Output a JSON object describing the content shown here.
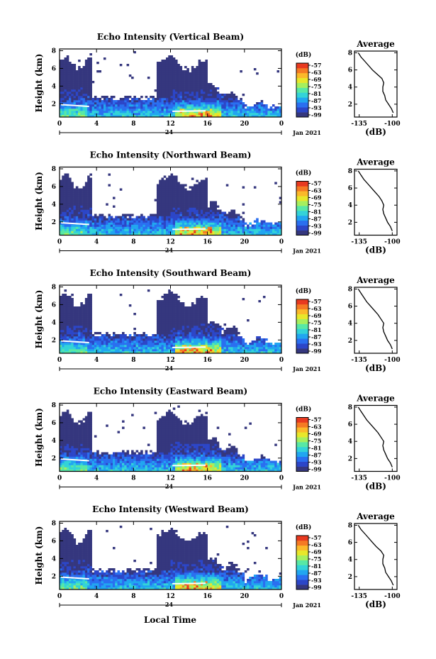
{
  "figure": {
    "xlabel": "Local Time",
    "date_label": "Jan 2021",
    "day_label": "24",
    "cbar_unit": "(dB)",
    "avg_title": "Average",
    "avg_xlabel": "(dB)",
    "ylabel": "Height (km)"
  },
  "colormap": [
    "#35377e",
    "#2c46c8",
    "#2a6ff0",
    "#21a6f0",
    "#33d3d8",
    "#58e8a5",
    "#a6ef5e",
    "#e8e72a",
    "#fbb92a",
    "#f57a24",
    "#e83a20"
  ],
  "chart_data": [
    {
      "type": "heatmap",
      "title": "Echo Intensity (Vertical Beam)",
      "xlabel": "Local Time",
      "ylabel": "Height (km)",
      "x_ticks": [
        "0",
        "4",
        "8",
        "12",
        "16",
        "20",
        "0"
      ],
      "x_range_hours": [
        0,
        24
      ],
      "y_ticks": [
        "2",
        "4",
        "6",
        "8"
      ],
      "ylim": [
        0.5,
        8.2
      ],
      "colorbar": {
        "unit": "(dB)",
        "ticks": [
          "-57",
          "-63",
          "-69",
          "-75",
          "-81",
          "-87",
          "-93",
          "-99"
        ]
      },
      "profile": {
        "title": "Average",
        "xlabel": "(dB)",
        "x_ticks": [
          "-135",
          "-100"
        ],
        "xlim": [
          -140,
          -95
        ],
        "y_ticks": [
          "2",
          "4",
          "6",
          "8"
        ],
        "height_km": [
          1.0,
          1.5,
          2.0,
          2.5,
          3.0,
          3.5,
          4.0,
          4.5,
          5.0,
          5.5,
          6.0,
          6.5,
          7.0,
          7.5,
          8.0
        ],
        "db": [
          -99,
          -101,
          -104,
          -107,
          -108,
          -110,
          -110,
          -109,
          -111,
          -116,
          -121,
          -125,
          -129,
          -133,
          -136
        ]
      }
    },
    {
      "type": "heatmap",
      "title": "Echo Intensity (Northward Beam)",
      "xlabel": "Local Time",
      "ylabel": "Height (km)",
      "x_ticks": [
        "0",
        "4",
        "8",
        "12",
        "16",
        "20",
        "0"
      ],
      "x_range_hours": [
        0,
        24
      ],
      "y_ticks": [
        "2",
        "4",
        "6",
        "8"
      ],
      "ylim": [
        0.5,
        8.2
      ],
      "colorbar": {
        "unit": "(dB)",
        "ticks": [
          "-57",
          "-63",
          "-69",
          "-75",
          "-81",
          "-87",
          "-93",
          "-99"
        ]
      },
      "profile": {
        "title": "Average",
        "xlabel": "(dB)",
        "x_ticks": [
          "-135",
          "-100"
        ],
        "xlim": [
          -140,
          -95
        ],
        "y_ticks": [
          "2",
          "4",
          "6",
          "8"
        ],
        "height_km": [
          1.0,
          1.5,
          2.0,
          2.5,
          3.0,
          3.5,
          4.0,
          4.5,
          5.0,
          5.5,
          6.0,
          6.5,
          7.0,
          7.5,
          8.0
        ],
        "db": [
          -100,
          -102,
          -105,
          -107,
          -109,
          -110,
          -109,
          -111,
          -114,
          -118,
          -122,
          -126,
          -130,
          -133,
          -136
        ]
      }
    },
    {
      "type": "heatmap",
      "title": "Echo Intensity (Southward Beam)",
      "xlabel": "Local Time",
      "ylabel": "Height (km)",
      "x_ticks": [
        "0",
        "4",
        "8",
        "12",
        "16",
        "20",
        "0"
      ],
      "x_range_hours": [
        0,
        24
      ],
      "y_ticks": [
        "2",
        "4",
        "6",
        "8"
      ],
      "ylim": [
        0.5,
        8.2
      ],
      "colorbar": {
        "unit": "(dB)",
        "ticks": [
          "-57",
          "-63",
          "-69",
          "-75",
          "-81",
          "-87",
          "-93",
          "-99"
        ]
      },
      "profile": {
        "title": "Average",
        "xlabel": "(dB)",
        "x_ticks": [
          "-135",
          "-100"
        ],
        "xlim": [
          -140,
          -95
        ],
        "y_ticks": [
          "2",
          "4",
          "6",
          "8"
        ],
        "height_km": [
          1.0,
          1.5,
          2.0,
          2.5,
          3.0,
          3.5,
          4.0,
          4.5,
          5.0,
          5.5,
          6.0,
          6.5,
          7.0,
          7.5,
          8.0
        ],
        "db": [
          -100,
          -102,
          -105,
          -107,
          -109,
          -110,
          -109,
          -112,
          -115,
          -119,
          -123,
          -127,
          -130,
          -133,
          -136
        ]
      }
    },
    {
      "type": "heatmap",
      "title": "Echo Intensity (Eastward Beam)",
      "xlabel": "Local Time",
      "ylabel": "Height (km)",
      "x_ticks": [
        "0",
        "4",
        "8",
        "12",
        "16",
        "20",
        "0"
      ],
      "x_range_hours": [
        0,
        24
      ],
      "y_ticks": [
        "2",
        "4",
        "6",
        "8"
      ],
      "ylim": [
        0.5,
        8.2
      ],
      "colorbar": {
        "unit": "(dB)",
        "ticks": [
          "-57",
          "-63",
          "-69",
          "-75",
          "-81",
          "-87",
          "-93",
          "-99"
        ]
      },
      "profile": {
        "title": "Average",
        "xlabel": "(dB)",
        "x_ticks": [
          "-135",
          "-100"
        ],
        "xlim": [
          -140,
          -95
        ],
        "y_ticks": [
          "2",
          "4",
          "6",
          "8"
        ],
        "height_km": [
          1.0,
          1.5,
          2.0,
          2.5,
          3.0,
          3.5,
          4.0,
          4.5,
          5.0,
          5.5,
          6.0,
          6.5,
          7.0,
          7.5,
          8.0
        ],
        "db": [
          -100,
          -102,
          -105,
          -107,
          -109,
          -110,
          -109,
          -112,
          -115,
          -119,
          -123,
          -127,
          -130,
          -133,
          -136
        ]
      }
    },
    {
      "type": "heatmap",
      "title": "Echo Intensity (Westward Beam)",
      "xlabel": "Local Time",
      "ylabel": "Height (km)",
      "x_ticks": [
        "0",
        "4",
        "8",
        "12",
        "16",
        "20",
        "0"
      ],
      "x_range_hours": [
        0,
        24
      ],
      "y_ticks": [
        "2",
        "4",
        "6",
        "8"
      ],
      "ylim": [
        0.5,
        8.2
      ],
      "colorbar": {
        "unit": "(dB)",
        "ticks": [
          "-57",
          "-63",
          "-69",
          "-75",
          "-81",
          "-87",
          "-93",
          "-99"
        ]
      },
      "profile": {
        "title": "Average",
        "xlabel": "(dB)",
        "x_ticks": [
          "-135",
          "-100"
        ],
        "xlim": [
          -140,
          -95
        ],
        "y_ticks": [
          "2",
          "4",
          "6",
          "8"
        ],
        "height_km": [
          1.0,
          1.5,
          2.0,
          2.5,
          3.0,
          3.5,
          4.0,
          4.5,
          5.0,
          5.5,
          6.0,
          6.5,
          7.0,
          7.5,
          8.0
        ],
        "db": [
          -99,
          -101,
          -104,
          -107,
          -108,
          -110,
          -110,
          -109,
          -112,
          -117,
          -121,
          -125,
          -129,
          -133,
          -136
        ]
      }
    }
  ]
}
